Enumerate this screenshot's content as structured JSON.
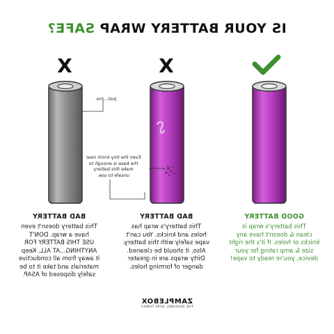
{
  "header": {
    "title_main": "IS YOUR BATTERY WRAP",
    "title_accent": "SAFE?"
  },
  "colors": {
    "accent_green": "#3f8f2f",
    "battery_gray": "#9a9a9a",
    "battery_purple": "#b43bbd"
  },
  "columns": [
    {
      "mark_icon": "cross-icon",
      "mark_text": "X",
      "label": "BAD BATTERY",
      "lines": [
        "This battery doesn't even",
        "have a wrap. DON'T",
        "USE THIS BATTERY FOR",
        "ANYTHING...AT ALL. Keep",
        "it away from all conductive",
        "materials and take it to be",
        "safely disposed of ASAP."
      ],
      "note": "Just... no."
    },
    {
      "mark_icon": "cross-icon",
      "mark_text": "X",
      "label": "BAD BATTERY",
      "lines": [
        "This battery's wrap has",
        "holes and knicks. You can't",
        "vape safely with this battery.",
        "Also, it should be cleaned.",
        "Dirty wraps are in greater",
        "danger of forming holes."
      ],
      "note_lines": [
        "Even the tiny knick near",
        "the base is enough to",
        "make this battery",
        "unsafe to use."
      ]
    },
    {
      "mark_icon": "check-icon",
      "label": "GOOD BATTERY",
      "lines": [
        "This battery's wrap is",
        "clean & doesn't have any",
        "knicks or holes. If it's the right",
        "size & amp rating for your",
        "device, you're ready to vape!"
      ]
    }
  ],
  "footer": {
    "brand": "ZAMPLEBOX",
    "tagline": "THE ORIGINAL VAPE FAMILY"
  }
}
